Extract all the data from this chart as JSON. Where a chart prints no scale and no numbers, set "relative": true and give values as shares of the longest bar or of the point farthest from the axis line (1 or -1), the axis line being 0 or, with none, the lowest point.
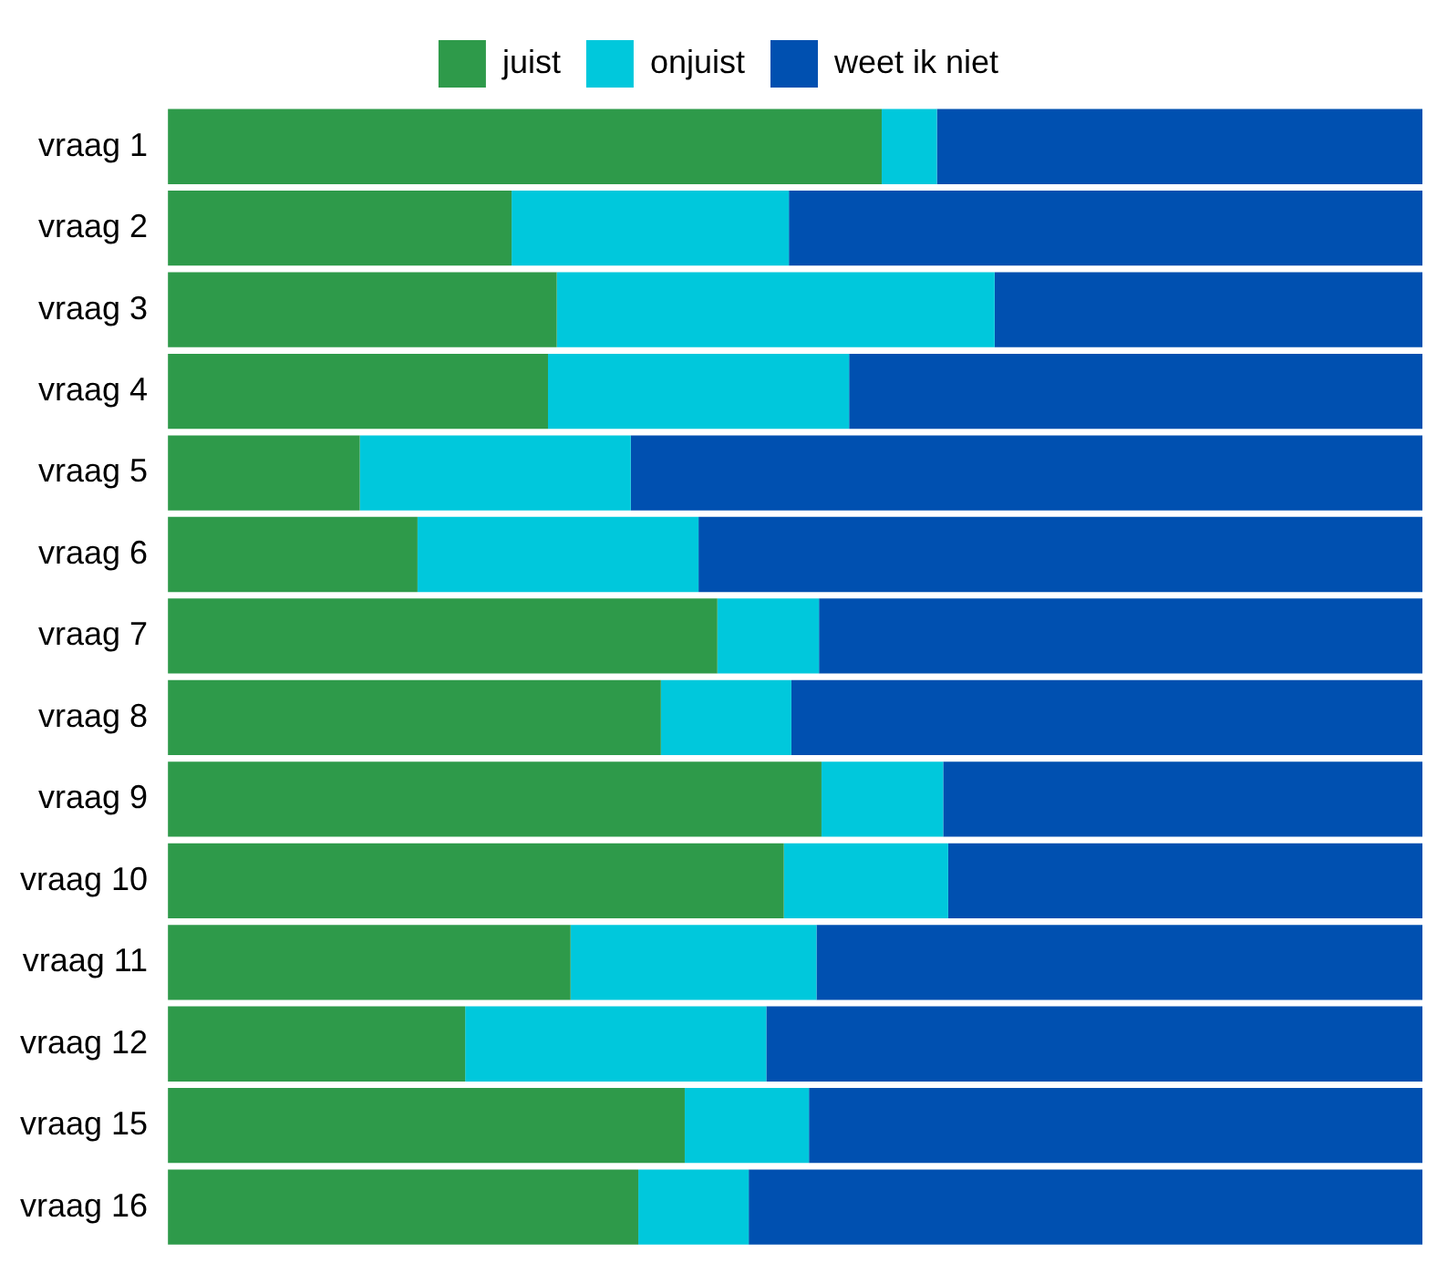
{
  "chart_data": {
    "type": "bar",
    "orientation": "horizontal",
    "stacked": true,
    "relative": true,
    "legend": "top",
    "categories": [
      "vraag 1",
      "vraag 2",
      "vraag 3",
      "vraag 4",
      "vraag 5",
      "vraag 6",
      "vraag 7",
      "vraag 8",
      "vraag 9",
      "vraag 10",
      "vraag 11",
      "vraag 12",
      "vraag 15",
      "vraag 16"
    ],
    "series": [
      {
        "name": "juist",
        "color": "#2e9a4a",
        "values": [
          0.569,
          0.274,
          0.31,
          0.303,
          0.153,
          0.199,
          0.438,
          0.393,
          0.521,
          0.491,
          0.321,
          0.237,
          0.412,
          0.375
        ]
      },
      {
        "name": "onjuist",
        "color": "#00c8dc",
        "values": [
          0.044,
          0.221,
          0.349,
          0.24,
          0.216,
          0.224,
          0.081,
          0.104,
          0.097,
          0.131,
          0.196,
          0.24,
          0.099,
          0.088
        ]
      },
      {
        "name": "weet ik niet",
        "color": "#0050b0",
        "values": [
          0.387,
          0.505,
          0.341,
          0.457,
          0.631,
          0.577,
          0.481,
          0.503,
          0.382,
          0.378,
          0.483,
          0.523,
          0.489,
          0.537
        ]
      }
    ]
  }
}
